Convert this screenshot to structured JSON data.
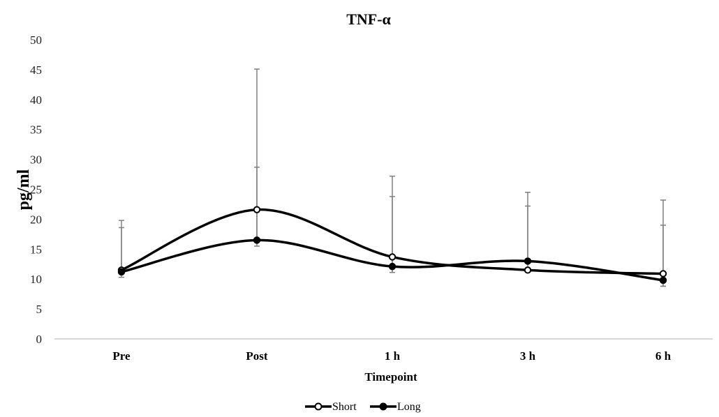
{
  "chart_data": {
    "type": "line",
    "title": "TNF-α",
    "xlabel": "Timepoint",
    "ylabel": "pg/ml",
    "ylim": [
      0,
      50
    ],
    "yticks": [
      0,
      5,
      10,
      15,
      20,
      25,
      30,
      35,
      40,
      45,
      50
    ],
    "categories": [
      "Pre",
      "Post",
      "1 h",
      "3 h",
      "6 h"
    ],
    "smooth": true,
    "grid": false,
    "legend_position": "bottom",
    "series": [
      {
        "name": "Short",
        "marker": "open-circle",
        "values": [
          11.5,
          21.6,
          13.7,
          11.5,
          10.9
        ],
        "error_upper": [
          18.6,
          45.1,
          27.2,
          22.2,
          19.0
        ],
        "error_lower": [
          11.5,
          16.2,
          11.1,
          11.5,
          8.8
        ]
      },
      {
        "name": "Long",
        "marker": "filled-circle",
        "values": [
          11.2,
          16.5,
          12.1,
          13.0,
          9.8
        ],
        "error_upper": [
          19.8,
          28.7,
          23.8,
          24.5,
          23.2
        ],
        "error_lower": [
          10.3,
          15.5,
          11.1,
          13.0,
          8.8
        ]
      }
    ]
  }
}
